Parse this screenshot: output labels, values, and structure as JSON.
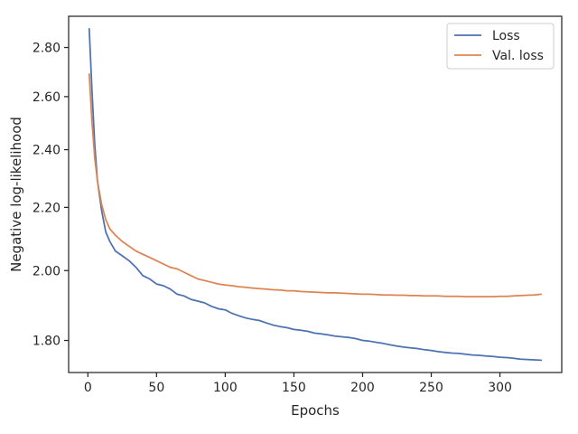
{
  "chart_data": {
    "type": "line",
    "title": "",
    "xlabel": "Epochs",
    "ylabel": "Negative log-likelihood",
    "xlim": [
      -14,
      345
    ],
    "ylim": [
      1.715,
      2.935
    ],
    "y_scale": "log",
    "x_ticks": [
      0,
      50,
      100,
      150,
      200,
      250,
      300
    ],
    "x_tick_labels": [
      "0",
      "50",
      "100",
      "150",
      "200",
      "250",
      "300"
    ],
    "y_ticks": [
      1.8,
      2.0,
      2.2,
      2.4,
      2.6,
      2.8
    ],
    "y_tick_labels": [
      "1.80",
      "2.00",
      "2.20",
      "2.40",
      "2.60",
      "2.80"
    ],
    "grid": false,
    "legend_position": "top-right",
    "series": [
      {
        "name": "Loss",
        "color": "#4c72b0",
        "x": [
          1,
          3,
          5,
          7,
          10,
          13,
          16,
          20,
          25,
          30,
          35,
          40,
          45,
          50,
          55,
          60,
          65,
          70,
          75,
          80,
          85,
          90,
          95,
          100,
          105,
          110,
          115,
          120,
          125,
          130,
          135,
          140,
          145,
          150,
          155,
          160,
          165,
          170,
          175,
          180,
          185,
          190,
          195,
          200,
          205,
          210,
          215,
          220,
          225,
          230,
          235,
          240,
          245,
          250,
          255,
          260,
          265,
          270,
          275,
          280,
          285,
          290,
          295,
          300,
          305,
          310,
          315,
          320,
          325,
          330
        ],
        "y": [
          2.88,
          2.62,
          2.42,
          2.29,
          2.19,
          2.12,
          2.09,
          2.06,
          2.045,
          2.03,
          2.01,
          1.985,
          1.975,
          1.96,
          1.955,
          1.945,
          1.93,
          1.925,
          1.915,
          1.91,
          1.905,
          1.895,
          1.888,
          1.885,
          1.875,
          1.868,
          1.862,
          1.858,
          1.855,
          1.848,
          1.842,
          1.838,
          1.835,
          1.83,
          1.828,
          1.825,
          1.82,
          1.818,
          1.815,
          1.812,
          1.81,
          1.808,
          1.805,
          1.8,
          1.798,
          1.795,
          1.792,
          1.788,
          1.785,
          1.782,
          1.78,
          1.778,
          1.775,
          1.773,
          1.77,
          1.768,
          1.766,
          1.765,
          1.763,
          1.761,
          1.76,
          1.758,
          1.757,
          1.755,
          1.754,
          1.752,
          1.75,
          1.749,
          1.748,
          1.747
        ]
      },
      {
        "name": "Val. loss",
        "color": "#dd8452",
        "x": [
          1,
          3,
          5,
          7,
          10,
          13,
          16,
          20,
          25,
          30,
          35,
          40,
          45,
          50,
          55,
          60,
          65,
          70,
          75,
          80,
          85,
          90,
          95,
          100,
          105,
          110,
          115,
          120,
          125,
          130,
          135,
          140,
          145,
          150,
          155,
          160,
          165,
          170,
          175,
          180,
          185,
          190,
          195,
          200,
          205,
          210,
          215,
          220,
          225,
          230,
          235,
          240,
          245,
          250,
          255,
          260,
          265,
          270,
          275,
          280,
          285,
          290,
          295,
          300,
          305,
          310,
          315,
          320,
          325,
          330
        ],
        "y": [
          2.69,
          2.5,
          2.37,
          2.29,
          2.21,
          2.16,
          2.13,
          2.11,
          2.09,
          2.075,
          2.06,
          2.05,
          2.04,
          2.03,
          2.02,
          2.01,
          2.005,
          1.995,
          1.985,
          1.975,
          1.97,
          1.965,
          1.96,
          1.957,
          1.955,
          1.952,
          1.95,
          1.948,
          1.946,
          1.945,
          1.943,
          1.942,
          1.94,
          1.94,
          1.938,
          1.937,
          1.936,
          1.935,
          1.934,
          1.934,
          1.933,
          1.932,
          1.931,
          1.93,
          1.93,
          1.929,
          1.928,
          1.928,
          1.927,
          1.927,
          1.926,
          1.926,
          1.925,
          1.925,
          1.925,
          1.924,
          1.924,
          1.924,
          1.923,
          1.923,
          1.923,
          1.923,
          1.923,
          1.924,
          1.924,
          1.925,
          1.926,
          1.927,
          1.928,
          1.93
        ]
      }
    ]
  }
}
